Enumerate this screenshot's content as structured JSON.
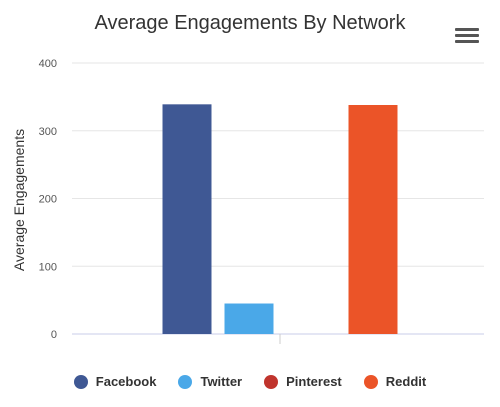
{
  "chart_data": {
    "type": "bar",
    "title": "Average Engagements By Network",
    "ylabel": "Average Engagements",
    "xlabel": "",
    "ylim": [
      0,
      400
    ],
    "yticks": [
      0,
      100,
      200,
      300,
      400
    ],
    "grid": true,
    "legend_position": "bottom",
    "series": [
      {
        "name": "Facebook",
        "value": 339,
        "color": "#3f5894"
      },
      {
        "name": "Twitter",
        "value": 45,
        "color": "#4aa8e8"
      },
      {
        "name": "Pinterest",
        "value": 0,
        "color": "#c0342d"
      },
      {
        "name": "Reddit",
        "value": 338,
        "color": "#eb5428"
      }
    ]
  },
  "menu": {
    "icon": "hamburger-menu-icon"
  }
}
